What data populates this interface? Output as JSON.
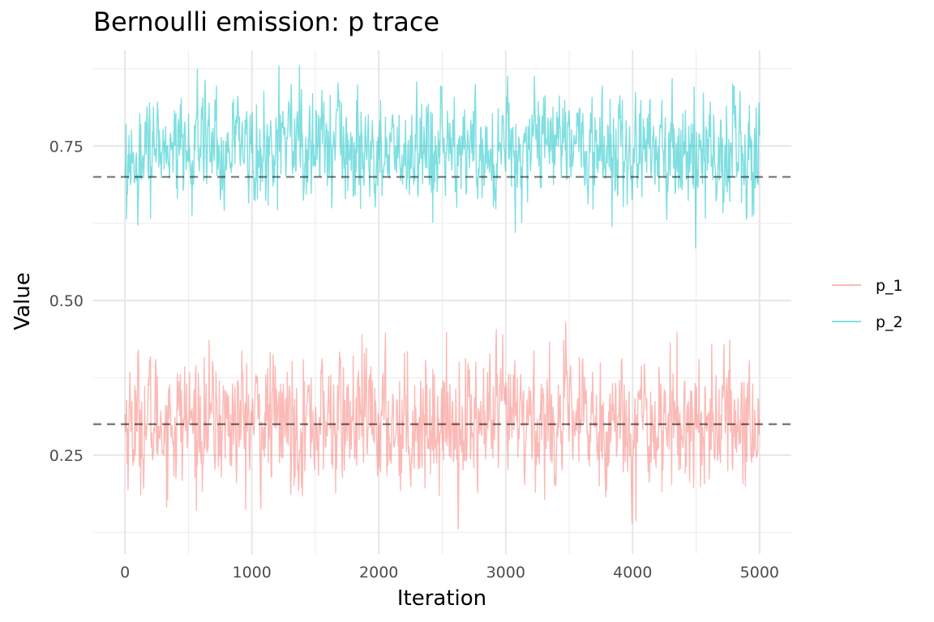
{
  "chart_data": {
    "type": "line",
    "title": "Bernoulli emission: p trace",
    "xlabel": "Iteration",
    "ylabel": "Value",
    "xlim": [
      -250,
      5250
    ],
    "ylim": [
      0.09,
      0.905
    ],
    "x_ticks": [
      0,
      1000,
      2000,
      3000,
      4000,
      5000
    ],
    "x_tick_labels": [
      "0",
      "1000",
      "2000",
      "3000",
      "4000",
      "5000"
    ],
    "y_ticks": [
      0.25,
      0.5,
      0.75
    ],
    "y_tick_labels": [
      "0.25",
      "0.50",
      "0.75"
    ],
    "grid": true,
    "legend_position": "right",
    "reference_lines": [
      0.3,
      0.7
    ],
    "series": [
      {
        "name": "p_1",
        "color": "#F8766D",
        "center": 0.305,
        "sd": 0.05,
        "x_start": 1,
        "x_end": 5000,
        "observed_range": [
          0.12,
          0.515
        ]
      },
      {
        "name": "p_2",
        "color": "#00BFC4",
        "center": 0.745,
        "sd": 0.042,
        "x_start": 1,
        "x_end": 5000,
        "observed_range": [
          0.585,
          0.88
        ]
      }
    ]
  }
}
